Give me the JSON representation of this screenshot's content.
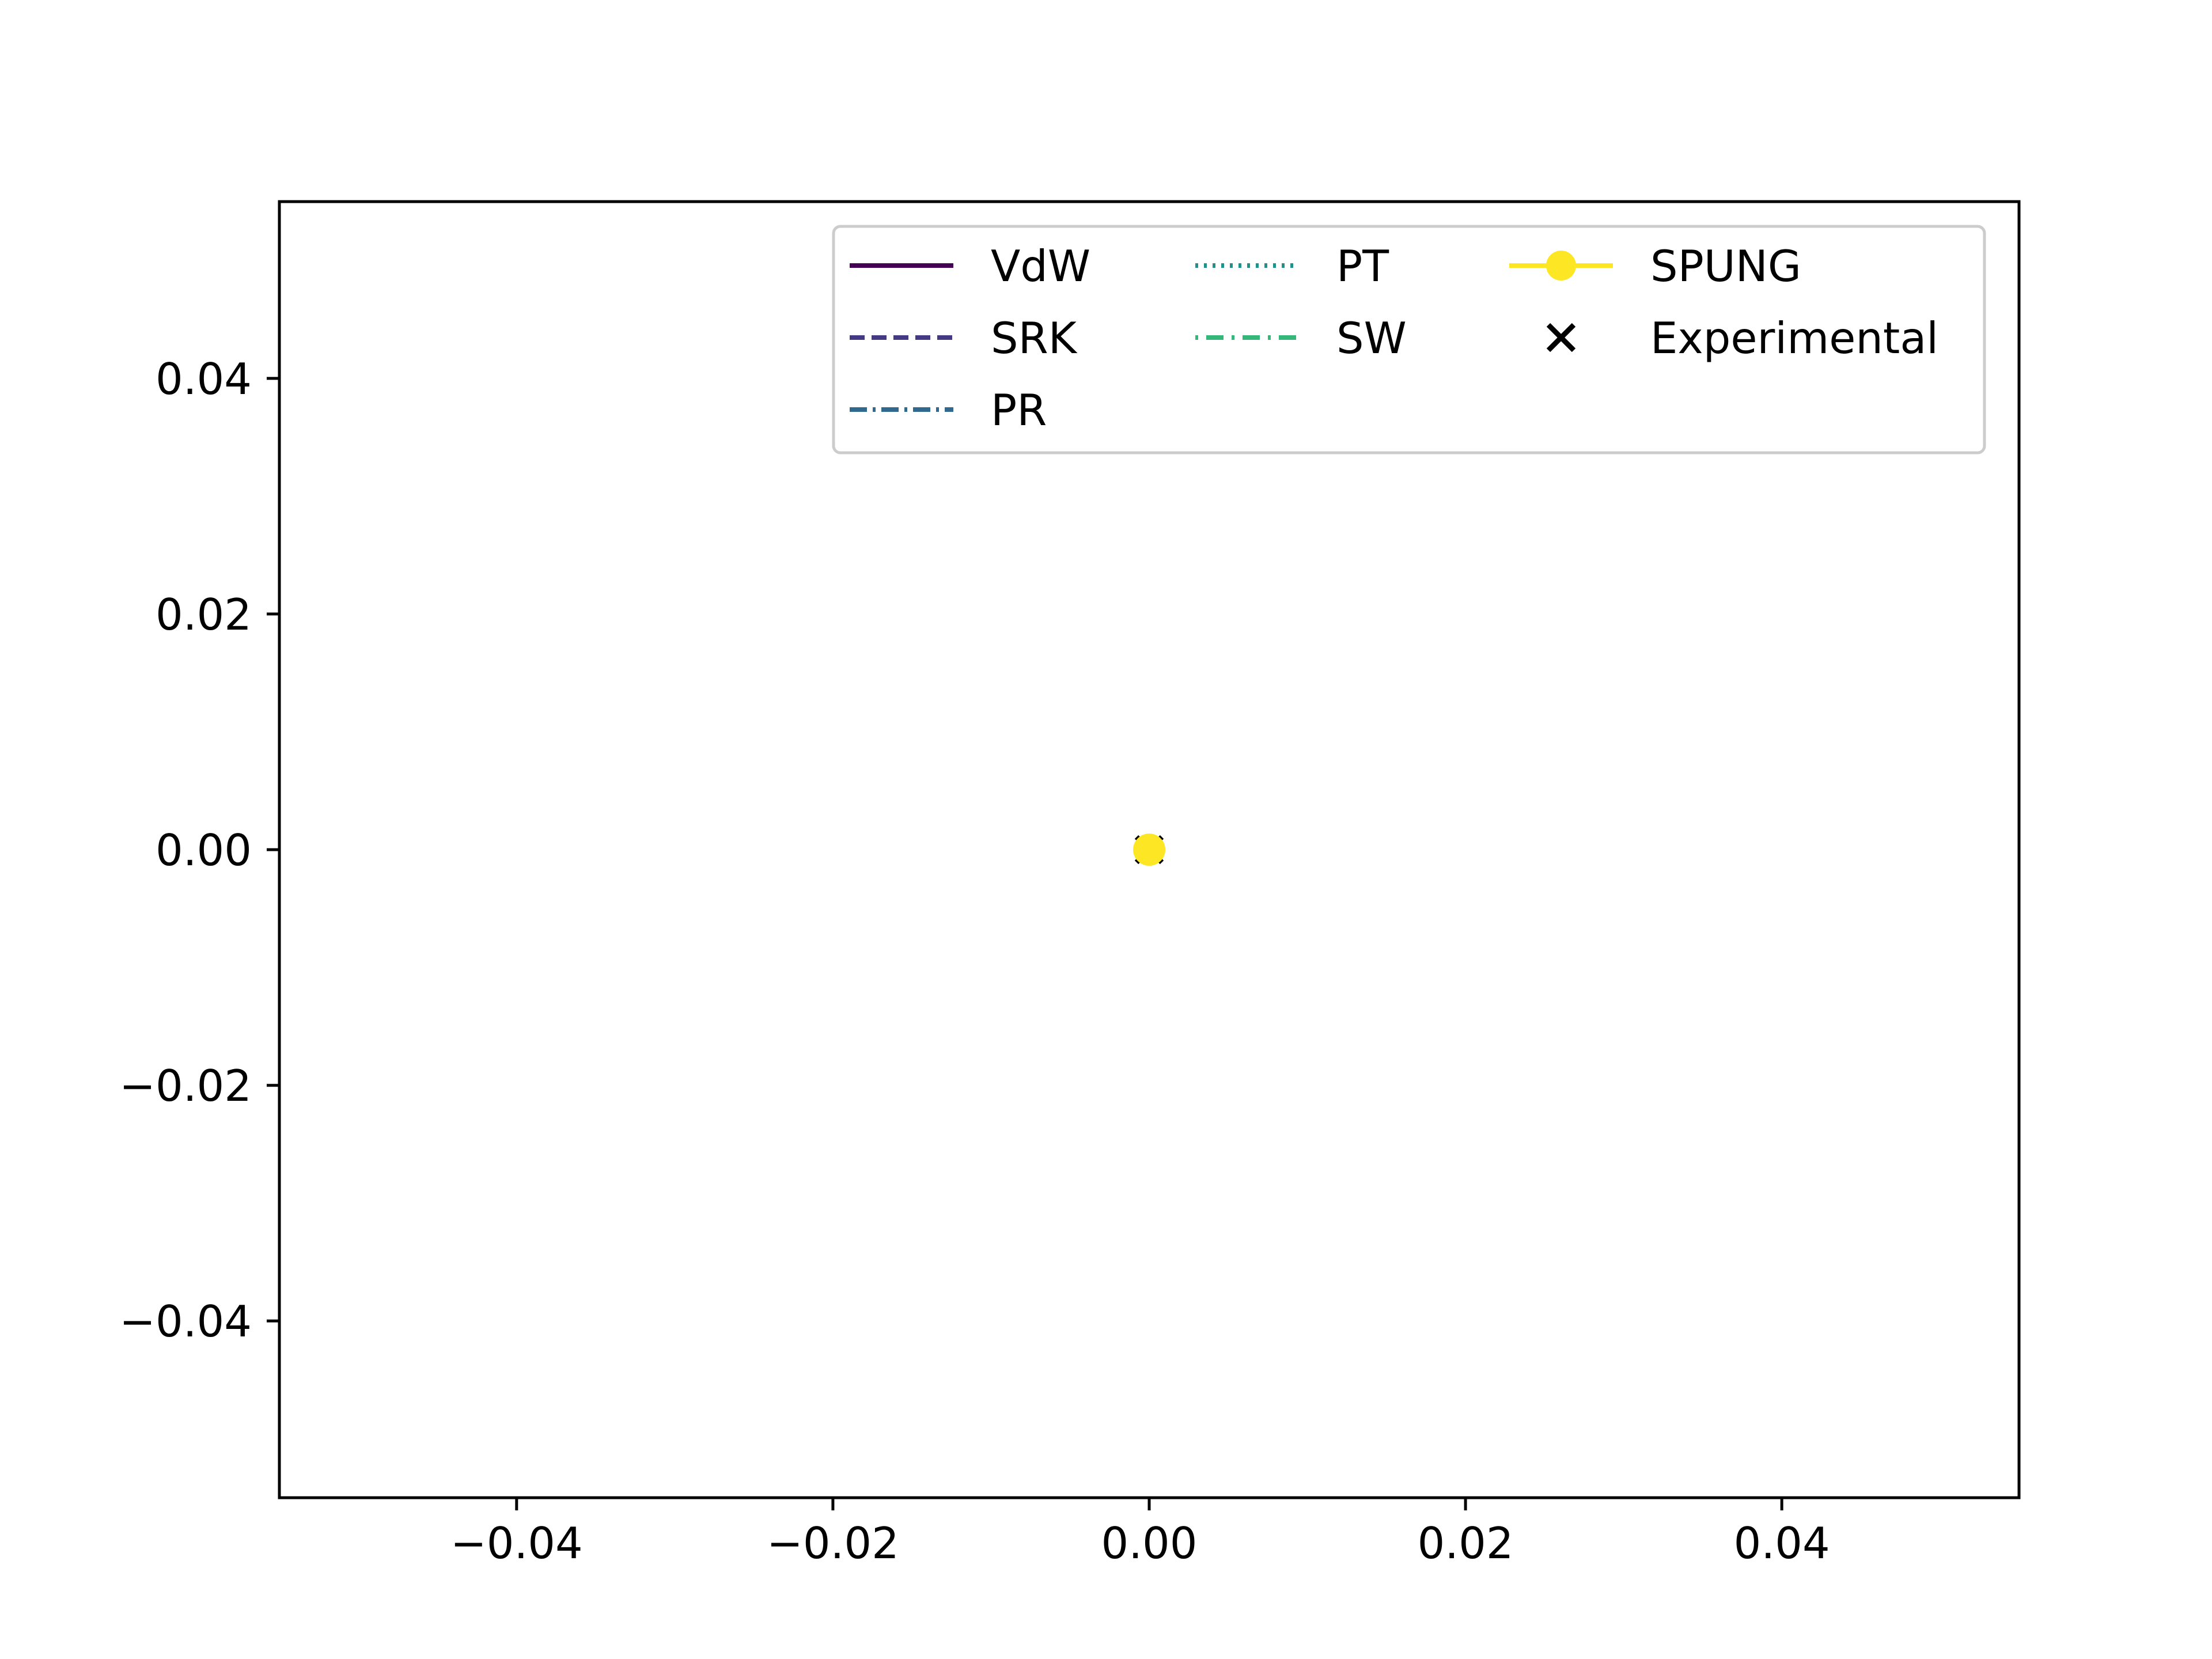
{
  "chart_data": {
    "type": "line",
    "title": "",
    "xlabel": "",
    "ylabel": "",
    "xlim": [
      -0.055,
      0.055
    ],
    "ylim": [
      -0.055,
      0.055
    ],
    "x_ticks": [
      -0.04,
      -0.02,
      0.0,
      0.02,
      0.04
    ],
    "y_ticks": [
      -0.04,
      -0.02,
      0.0,
      0.02,
      0.04
    ],
    "x_tick_labels": [
      "−0.04",
      "−0.02",
      "0.00",
      "0.02",
      "0.04"
    ],
    "y_tick_labels": [
      "−0.04",
      "−0.02",
      "0.00",
      "0.02",
      "0.04"
    ],
    "grid": false,
    "legend_position": "upper right",
    "legend_columns": 3,
    "series": [
      {
        "name": "VdW",
        "style": "solid",
        "marker": "none",
        "color": "#440154",
        "x": [
          0.0
        ],
        "y": [
          0.0
        ]
      },
      {
        "name": "SRK",
        "style": "dashed",
        "marker": "none",
        "color": "#443983",
        "x": [
          0.0
        ],
        "y": [
          0.0
        ]
      },
      {
        "name": "PR",
        "style": "dashdot",
        "marker": "none",
        "color": "#31688e",
        "x": [
          0.0
        ],
        "y": [
          0.0
        ]
      },
      {
        "name": "PT",
        "style": "dotted",
        "marker": "none",
        "color": "#21918c",
        "x": [
          0.0
        ],
        "y": [
          0.0
        ]
      },
      {
        "name": "SW",
        "style": "dotdash",
        "marker": "none",
        "color": "#35b779",
        "x": [
          0.0
        ],
        "y": [
          0.0
        ]
      },
      {
        "name": "SPUNG",
        "style": "solid",
        "marker": "circle",
        "color": "#fde725",
        "x": [
          0.0
        ],
        "y": [
          0.0
        ]
      },
      {
        "name": "Experimental",
        "style": "none",
        "marker": "x",
        "color": "#000000",
        "x": [
          0.0
        ],
        "y": [
          0.0
        ]
      }
    ]
  }
}
